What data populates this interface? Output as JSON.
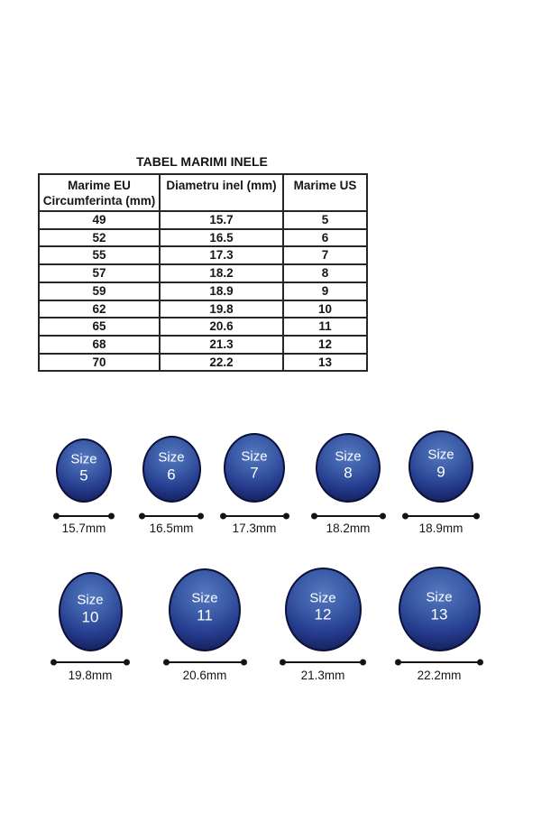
{
  "table": {
    "title": "TABEL MARIMI INELE",
    "headers": {
      "col1_line1": "Marime EU",
      "col1_line2": "Circumferinta (mm)",
      "col2": "Diametru inel (mm)",
      "col3": "Marime US"
    },
    "rows": [
      {
        "marime_eu": "49",
        "diametru": "15.7",
        "marime_us": "5"
      },
      {
        "marime_eu": "52",
        "diametru": "16.5",
        "marime_us": "6"
      },
      {
        "marime_eu": "55",
        "diametru": "17.3",
        "marime_us": "7"
      },
      {
        "marime_eu": "57",
        "diametru": "18.2",
        "marime_us": "8"
      },
      {
        "marime_eu": "59",
        "diametru": "18.9",
        "marime_us": "9"
      },
      {
        "marime_eu": "62",
        "diametru": "19.8",
        "marime_us": "10"
      },
      {
        "marime_eu": "65",
        "diametru": "20.6",
        "marime_us": "11"
      },
      {
        "marime_eu": "68",
        "diametru": "21.3",
        "marime_us": "12"
      },
      {
        "marime_eu": "70",
        "diametru": "22.2",
        "marime_us": "13"
      }
    ]
  },
  "rings": {
    "size_word": "Size",
    "row1": [
      {
        "size": "5",
        "diameter_label": "15.7mm"
      },
      {
        "size": "6",
        "diameter_label": "16.5mm"
      },
      {
        "size": "7",
        "diameter_label": "17.3mm"
      },
      {
        "size": "8",
        "diameter_label": "18.2mm"
      },
      {
        "size": "9",
        "diameter_label": "18.9mm"
      }
    ],
    "row2": [
      {
        "size": "10",
        "diameter_label": "19.8mm"
      },
      {
        "size": "11",
        "diameter_label": "20.6mm"
      },
      {
        "size": "12",
        "diameter_label": "21.3mm"
      },
      {
        "size": "13",
        "diameter_label": "22.2mm"
      }
    ]
  },
  "colors": {
    "ring_light": "#5478be",
    "ring_dark": "#16225e",
    "ring_text": "#ffffff",
    "line_color": "#131313",
    "table_border": "#262626"
  }
}
